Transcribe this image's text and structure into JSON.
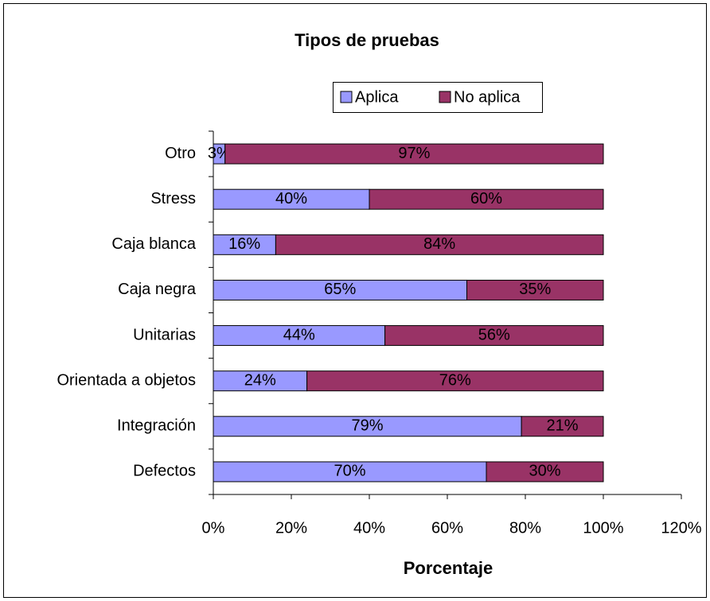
{
  "chart_data": {
    "type": "bar",
    "orientation": "horizontal",
    "stacked": true,
    "title": "Tipos de pruebas",
    "x_label": "Porcentaje",
    "categories": [
      "Otro",
      "Stress",
      "Caja blanca",
      "Caja negra",
      "Unitarias",
      "Orientada a objetos",
      "Integración",
      "Defectos"
    ],
    "series": [
      {
        "name": "Aplica",
        "color": "#9999ff",
        "values": [
          3,
          40,
          16,
          65,
          44,
          24,
          79,
          70
        ],
        "value_labels": [
          "3%",
          "40%",
          "16%",
          "65%",
          "44%",
          "24%",
          "79%",
          "70%"
        ]
      },
      {
        "name": "No aplica",
        "color": "#993366",
        "values": [
          97,
          60,
          84,
          35,
          56,
          76,
          21,
          30
        ],
        "value_labels": [
          "97%",
          "60%",
          "84%",
          "35%",
          "56%",
          "76%",
          "21%",
          "30%"
        ]
      }
    ],
    "xlim": [
      0,
      120
    ],
    "xticks": [
      {
        "value": 0,
        "label": "0%"
      },
      {
        "value": 20,
        "label": "20%"
      },
      {
        "value": 40,
        "label": "40%"
      },
      {
        "value": 60,
        "label": "60%"
      },
      {
        "value": 80,
        "label": "80%"
      },
      {
        "value": 100,
        "label": "100%"
      },
      {
        "value": 120,
        "label": "120%"
      }
    ],
    "legend": "top",
    "grid": false
  }
}
